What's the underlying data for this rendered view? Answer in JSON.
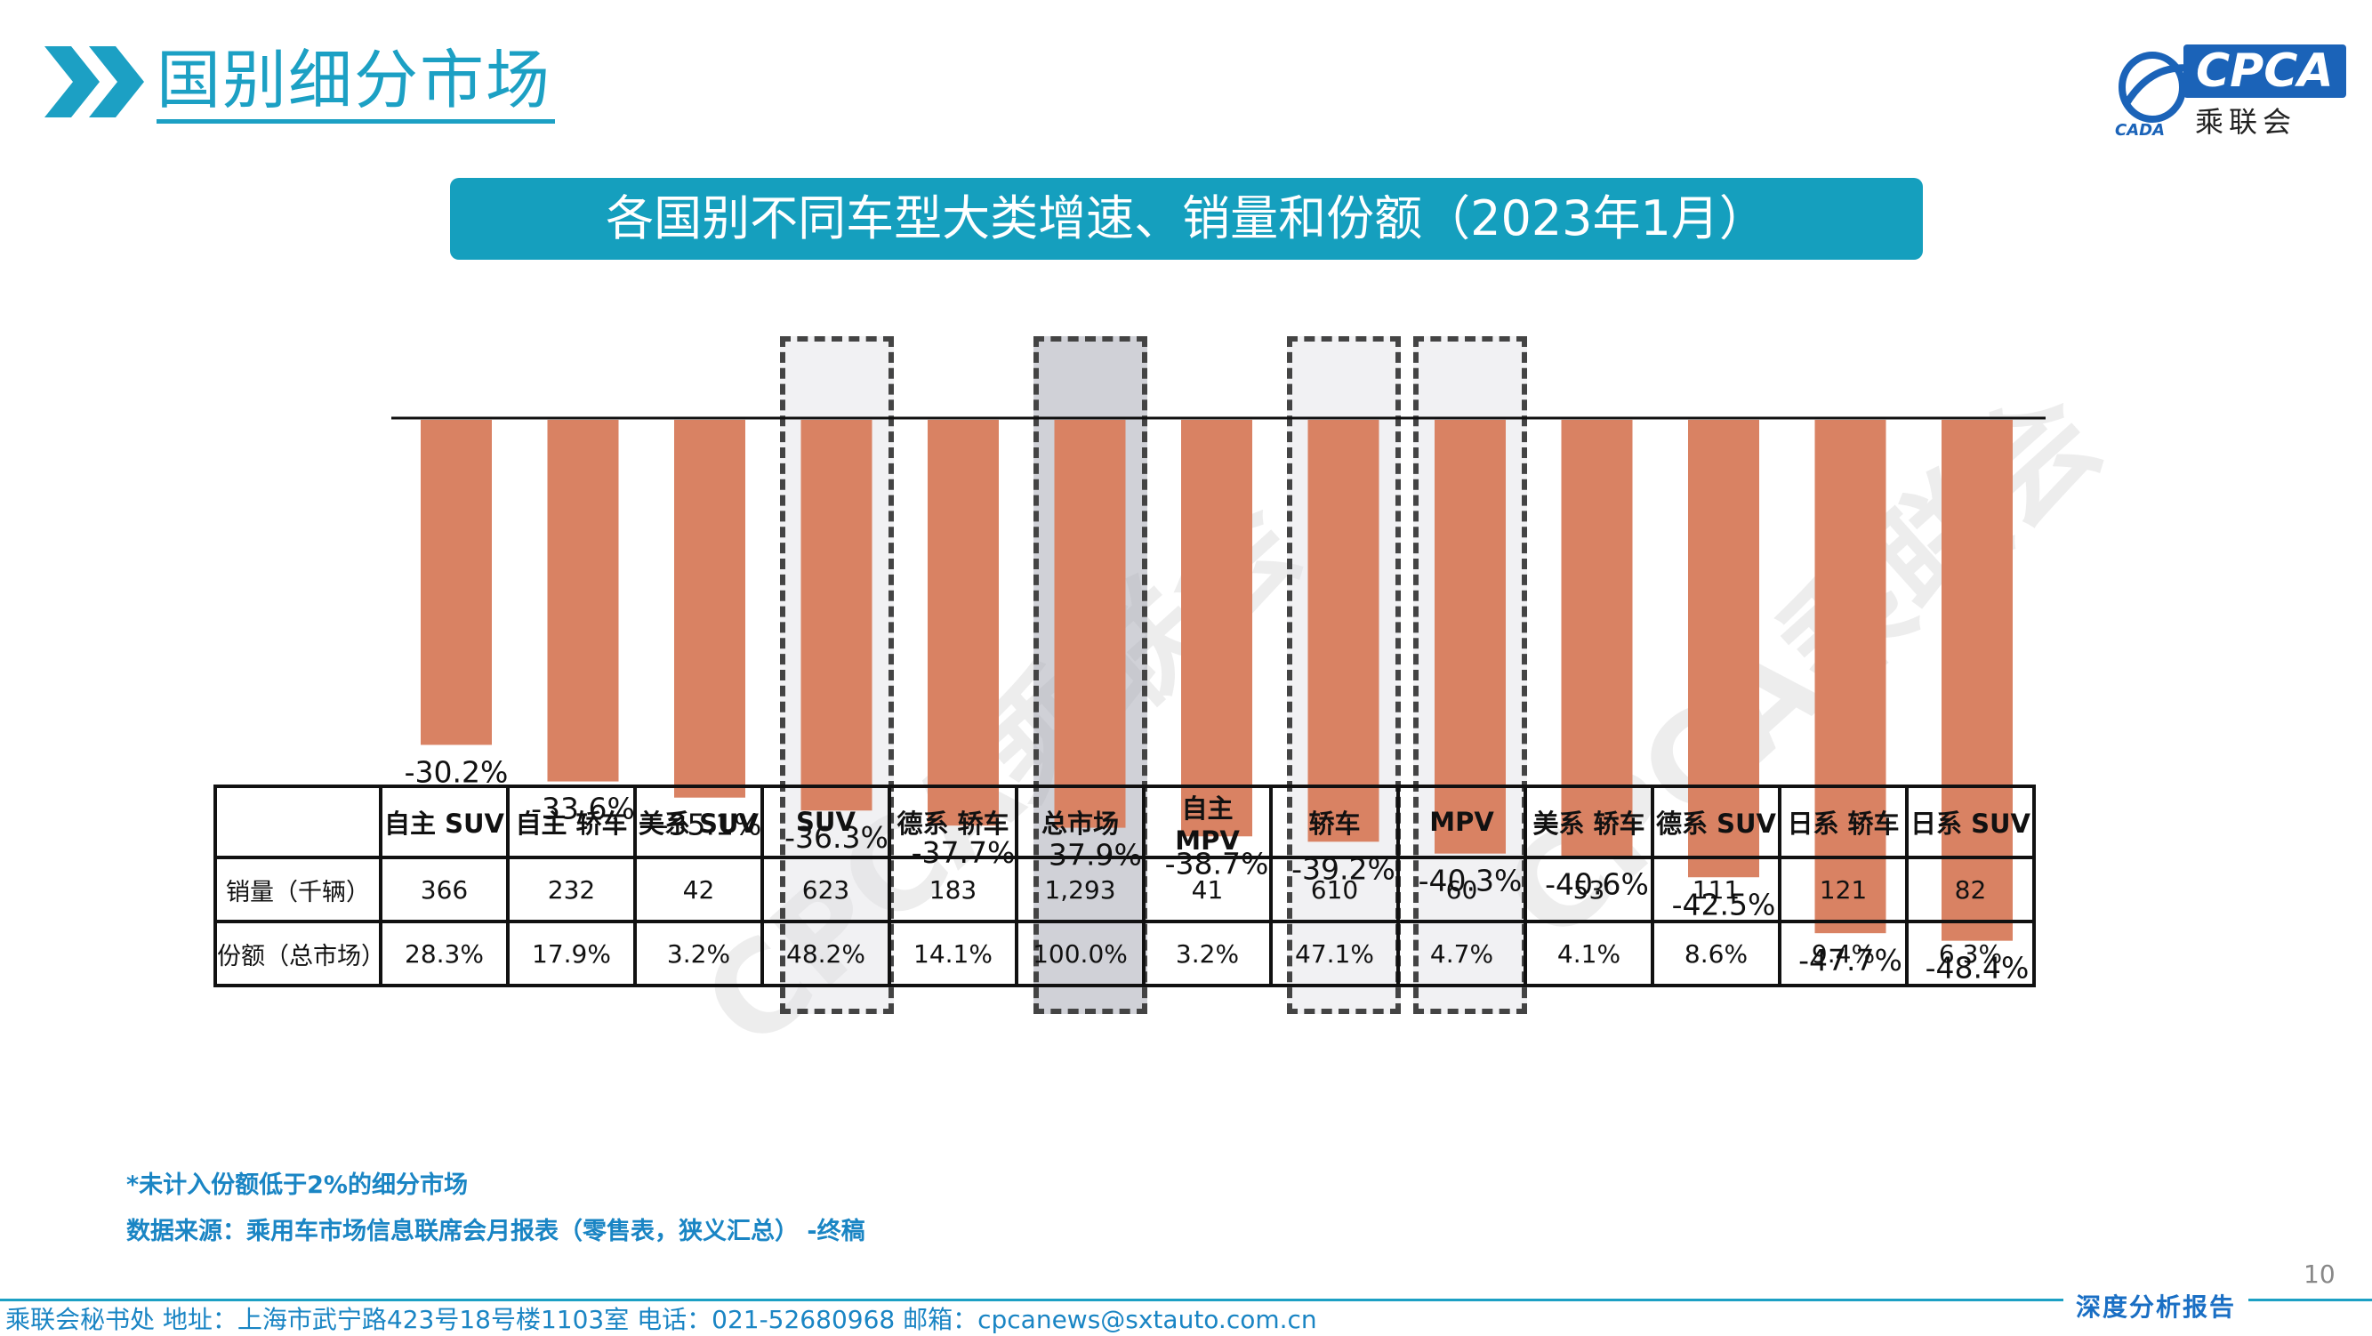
{
  "header": {
    "title": "国别细分市场",
    "logo_text": "CPCA",
    "logo_subtext": "乘联会",
    "logo_small": "CADA"
  },
  "banner": {
    "text": "各国别不同车型大类增速、销量和份额（2023年1月）"
  },
  "colors": {
    "bar": "#d98263",
    "accent": "#1ca0c4",
    "banner": "#159fbe",
    "dark_box": "#aaacb6"
  },
  "chart_data": {
    "type": "bar",
    "categories": [
      "自主 SUV",
      "自主 轿车",
      "美系 SUV",
      "SUV",
      "德系 轿车",
      "总市场",
      "自主 MPV",
      "轿车",
      "MPV",
      "美系 轿车",
      "德系 SUV",
      "日系 轿车",
      "日系 SUV"
    ],
    "values": [
      -30.2,
      -33.6,
      -35.1,
      -36.3,
      -37.7,
      -37.9,
      -38.7,
      -39.2,
      -40.3,
      -40.6,
      -42.5,
      -47.7,
      -48.4
    ],
    "value_labels": [
      "-30.2%",
      "-33.6%",
      "-35.1%",
      "-36.3%",
      "-37.7%",
      "-37.9%",
      "-38.7%",
      "-39.2%",
      "-40.3%",
      "-40.6%",
      "-42.5%",
      "-47.7%",
      "-48.4%"
    ],
    "ylim": [
      -50,
      0
    ],
    "highlighted": [
      "SUV",
      "总市场",
      "轿车",
      "MPV"
    ],
    "grid": false
  },
  "table": {
    "row_labels": [
      "销量（千辆）",
      "份额（总市场）"
    ],
    "sales": [
      "366",
      "232",
      "42",
      "623",
      "183",
      "1,293",
      "41",
      "610",
      "60",
      "53",
      "111",
      "121",
      "82"
    ],
    "shares": [
      "28.3%",
      "17.9%",
      "3.2%",
      "48.2%",
      "14.1%",
      "100.0%",
      "3.2%",
      "47.1%",
      "4.7%",
      "4.1%",
      "8.6%",
      "9.4%",
      "6.3%"
    ]
  },
  "watermark": "CPCA乘联会",
  "notes": {
    "note1": "*未计入份额低于2%的细分市场",
    "note2": "数据来源：乘用车市场信息联席会月报表（零售表，狭义汇总） -终稿"
  },
  "footer": {
    "page_number": "10",
    "contact": "乘联会秘书处   地址：上海市武宁路423号18号楼1103室  电话：021-52680968   邮箱：cpcanews@sxtauto.com.cn",
    "report_type": "深度分析报告"
  }
}
